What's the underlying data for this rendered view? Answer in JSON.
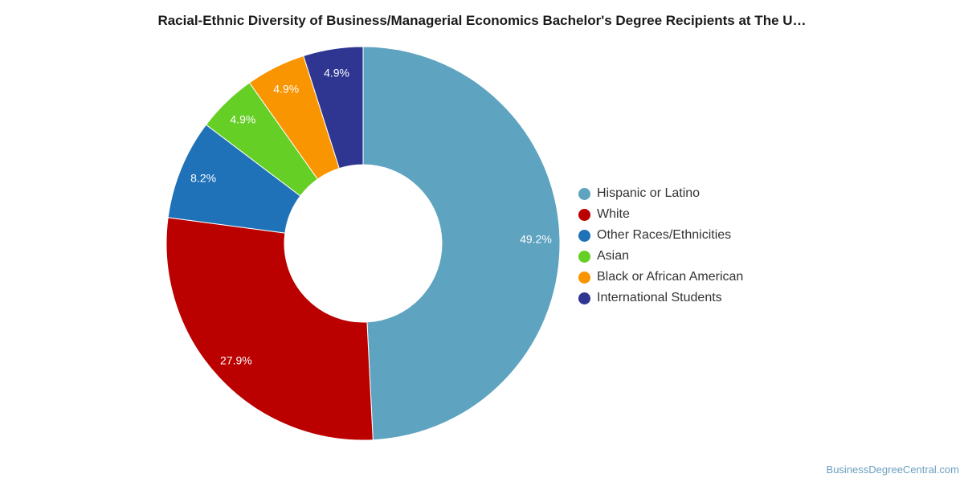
{
  "chart_data": {
    "type": "pie",
    "title": "Racial-Ethnic Diversity of Business/Managerial Economics Bachelor's Degree Recipients at The U…",
    "donut": true,
    "legend_position": "right",
    "slices": [
      {
        "name": "Hispanic or Latino",
        "value": 49.2,
        "label": "49.2%",
        "color": "#5ea3c0"
      },
      {
        "name": "White",
        "value": 27.9,
        "label": "27.9%",
        "color": "#bb0000"
      },
      {
        "name": "Other Races/Ethnicities",
        "value": 8.2,
        "label": "8.2%",
        "color": "#1f72b8"
      },
      {
        "name": "Asian",
        "value": 4.9,
        "label": "4.9%",
        "color": "#65cf26"
      },
      {
        "name": "Black or African American",
        "value": 4.9,
        "label": "4.9%",
        "color": "#f99500"
      },
      {
        "name": "International Students",
        "value": 4.9,
        "label": "4.9%",
        "color": "#2e3691"
      }
    ]
  },
  "watermark": "BusinessDegreeCentral.com"
}
